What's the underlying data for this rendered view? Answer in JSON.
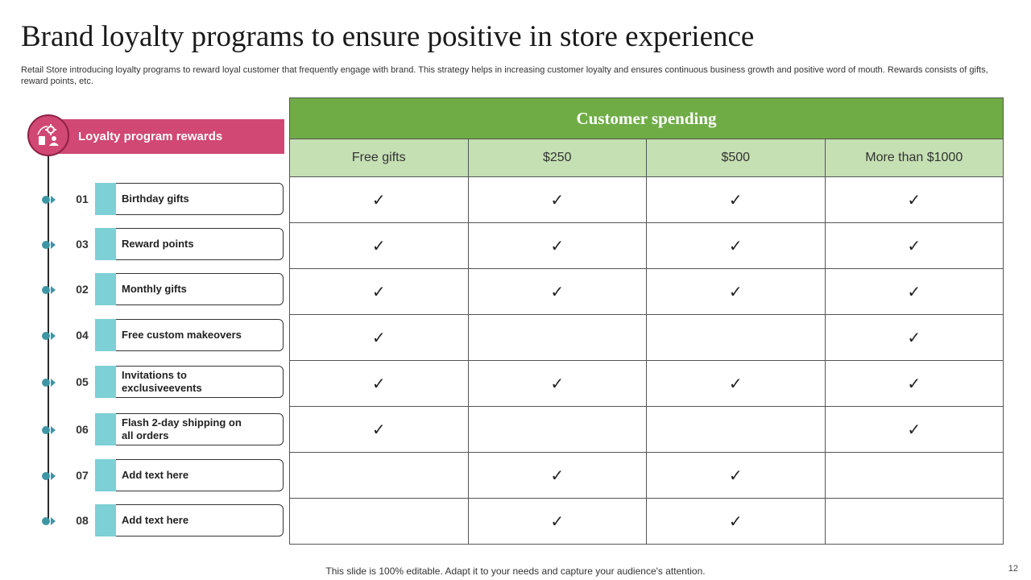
{
  "slide": {
    "title": "Brand loyalty programs to ensure positive in store experience",
    "subtitle": "Retail Store introducing loyalty programs to reward loyal customer that frequently engage with brand. This strategy helps in increasing customer loyalty and ensures continuous business growth and positive word of mouth. Rewards consists of gifts, reward points, etc.",
    "footer": "This slide is 100% editable. Adapt it to your needs and capture your audience's attention.",
    "page_number": "12"
  },
  "rewards": {
    "header": "Loyalty program rewards",
    "items": [
      {
        "num": "01",
        "label": "Birthday gifts"
      },
      {
        "num": "03",
        "label": "Reward points"
      },
      {
        "num": "02",
        "label": "Monthly gifts"
      },
      {
        "num": "04",
        "label": "Free custom makeovers"
      },
      {
        "num": "05",
        "label": "Invitations to exclusiveevents"
      },
      {
        "num": "06",
        "label": "Flash 2-day shipping on all orders"
      },
      {
        "num": "07",
        "label": "Add text here"
      },
      {
        "num": "08",
        "label": "Add text here"
      }
    ]
  },
  "spending": {
    "title": "Customer spending",
    "columns": [
      "Free gifts",
      "$250",
      "$500",
      "More than $1000"
    ],
    "check_symbol": "✓",
    "rows": [
      [
        true,
        true,
        true,
        true
      ],
      [
        true,
        true,
        true,
        true
      ],
      [
        true,
        true,
        true,
        true
      ],
      [
        true,
        false,
        false,
        true
      ],
      [
        true,
        true,
        true,
        true
      ],
      [
        true,
        false,
        false,
        true
      ],
      [
        false,
        true,
        true,
        false
      ],
      [
        false,
        true,
        true,
        false
      ]
    ]
  },
  "colors": {
    "header_pink": "#d04873",
    "table_green": "#6fac46",
    "table_light_green": "#c5e0b3",
    "tab_teal": "#7dd0d5",
    "dot_teal": "#3e96a5"
  }
}
